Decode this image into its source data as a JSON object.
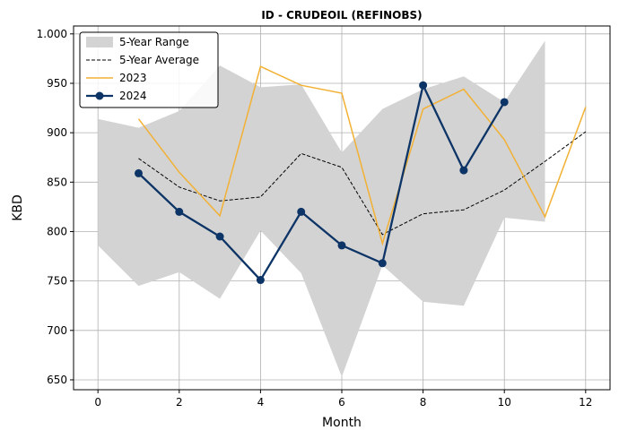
{
  "chart_data": {
    "type": "line",
    "title": "ID - CRUDEOIL (REFINOBS)",
    "xlabel": "Month",
    "ylabel": "KBD",
    "xlim": [
      -0.6,
      12.6
    ],
    "ylim": [
      640,
      1008
    ],
    "x_ticks": [
      "0",
      "2",
      "4",
      "6",
      "8",
      "10",
      "12"
    ],
    "x_tick_values": [
      0,
      2,
      4,
      6,
      8,
      10,
      12
    ],
    "y_ticks": [
      "650",
      "700",
      "750",
      "800",
      "850",
      "900",
      "950",
      "1.000"
    ],
    "y_tick_values": [
      650,
      700,
      750,
      800,
      850,
      900,
      950,
      1000
    ],
    "grid": true,
    "legend_position": "top-left",
    "range": {
      "name": "5-Year Range",
      "color": "#d3d3d3",
      "x": [
        0,
        1,
        2,
        3,
        4,
        5,
        6,
        7,
        8,
        9,
        10,
        11
      ],
      "upper": [
        914,
        905,
        922,
        968,
        946,
        949,
        880,
        924,
        944,
        957,
        931,
        993
      ],
      "lower": [
        786,
        745,
        759,
        732,
        801,
        758,
        653,
        766,
        729,
        725,
        814,
        810
      ]
    },
    "series": [
      {
        "name": "5-Year Average",
        "color": "#000000",
        "style": "dashed",
        "x": [
          1,
          2,
          3,
          4,
          5,
          6,
          7,
          8,
          9,
          10,
          11,
          12
        ],
        "values": [
          874,
          845,
          831,
          835,
          879,
          865,
          797,
          818,
          822,
          842,
          871,
          901
        ]
      },
      {
        "name": "2023",
        "color": "#f2b134",
        "style": "solid",
        "x": [
          1,
          2,
          3,
          4,
          5,
          6,
          7,
          8,
          9,
          10,
          11,
          12
        ],
        "values": [
          914,
          860,
          816,
          967,
          948,
          940,
          788,
          924,
          944,
          893,
          815,
          926
        ]
      },
      {
        "name": "2024",
        "color": "#0d3466",
        "style": "solid-markers",
        "x": [
          1,
          2,
          3,
          4,
          5,
          6,
          7,
          8,
          9,
          10
        ],
        "values": [
          859,
          820,
          795,
          751,
          820,
          786,
          768,
          948,
          862,
          931
        ]
      }
    ]
  }
}
